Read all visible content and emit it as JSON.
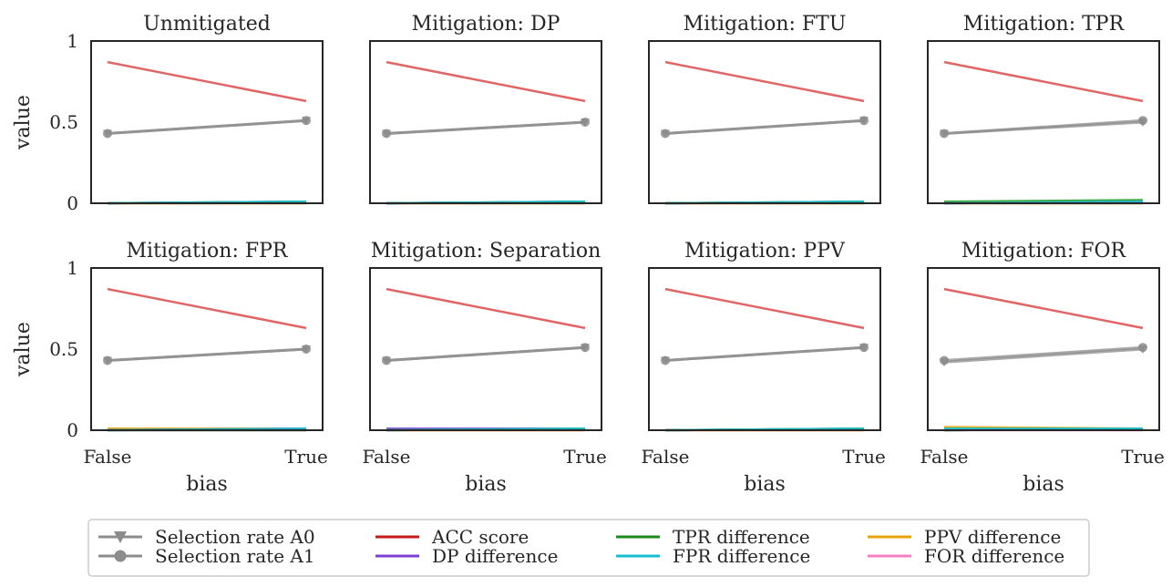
{
  "chart_data": {
    "type": "line",
    "ylabel": "value",
    "xlabel": "bias",
    "categories": [
      "False",
      "True"
    ],
    "y_ticks": [
      {
        "value": 0,
        "label": "0"
      },
      {
        "value": 0.5,
        "label": "0.5"
      },
      {
        "value": 1,
        "label": "1"
      }
    ],
    "ylim": [
      0,
      1
    ],
    "grid": false,
    "legend_position": "bottom",
    "colors": {
      "selection_rate": "#8c8c8c",
      "acc": "#e06666",
      "dp": "#7f3fd1",
      "tpr": "#2ca02c",
      "fpr": "#17becf",
      "ppv": "#e5a50a",
      "for": "#f67ec6"
    },
    "panels": [
      {
        "title": "Unmitigated",
        "series": {
          "acc": [
            0.87,
            0.63
          ],
          "sel_a0": [
            0.43,
            0.51
          ],
          "sel_a1": [
            0.43,
            0.51
          ],
          "dp": [
            0.0,
            0.01
          ],
          "tpr": [
            0.0,
            0.01
          ],
          "fpr": [
            0.0,
            0.01
          ],
          "ppv": [
            0.0,
            0.0
          ],
          "for": [
            0.0,
            0.0
          ]
        }
      },
      {
        "title": "Mitigation: DP",
        "series": {
          "acc": [
            0.87,
            0.63
          ],
          "sel_a0": [
            0.43,
            0.5
          ],
          "sel_a1": [
            0.43,
            0.5
          ],
          "dp": [
            0.0,
            0.01
          ],
          "tpr": [
            0.0,
            0.01
          ],
          "fpr": [
            0.0,
            0.01
          ],
          "ppv": [
            0.0,
            0.0
          ],
          "for": [
            0.0,
            0.0
          ]
        }
      },
      {
        "title": "Mitigation: FTU",
        "series": {
          "acc": [
            0.87,
            0.63
          ],
          "sel_a0": [
            0.43,
            0.51
          ],
          "sel_a1": [
            0.43,
            0.51
          ],
          "dp": [
            0.0,
            0.01
          ],
          "tpr": [
            0.0,
            0.01
          ],
          "fpr": [
            0.0,
            0.01
          ],
          "ppv": [
            0.0,
            0.0
          ],
          "for": [
            0.0,
            0.0
          ]
        }
      },
      {
        "title": "Mitigation: TPR",
        "series": {
          "acc": [
            0.87,
            0.63
          ],
          "sel_a0": [
            0.43,
            0.5
          ],
          "sel_a1": [
            0.43,
            0.51
          ],
          "dp": [
            0.0,
            0.01
          ],
          "tpr": [
            0.01,
            0.02
          ],
          "fpr": [
            0.0,
            0.01
          ],
          "ppv": [
            0.0,
            0.0
          ],
          "for": [
            0.0,
            0.0
          ]
        }
      },
      {
        "title": "Mitigation: FPR",
        "series": {
          "acc": [
            0.87,
            0.63
          ],
          "sel_a0": [
            0.43,
            0.5
          ],
          "sel_a1": [
            0.43,
            0.5
          ],
          "dp": [
            0.0,
            0.01
          ],
          "tpr": [
            0.0,
            0.0
          ],
          "fpr": [
            0.0,
            0.01
          ],
          "ppv": [
            0.01,
            0.01
          ],
          "for": [
            0.0,
            0.0
          ]
        }
      },
      {
        "title": "Mitigation: Separation",
        "series": {
          "acc": [
            0.87,
            0.63
          ],
          "sel_a0": [
            0.43,
            0.51
          ],
          "sel_a1": [
            0.43,
            0.51
          ],
          "dp": [
            0.01,
            0.01
          ],
          "tpr": [
            0.0,
            0.01
          ],
          "fpr": [
            0.0,
            0.01
          ],
          "ppv": [
            0.0,
            0.0
          ],
          "for": [
            0.0,
            0.0
          ]
        }
      },
      {
        "title": "Mitigation: PPV",
        "series": {
          "acc": [
            0.87,
            0.63
          ],
          "sel_a0": [
            0.43,
            0.51
          ],
          "sel_a1": [
            0.43,
            0.51
          ],
          "dp": [
            0.0,
            0.01
          ],
          "tpr": [
            0.0,
            0.01
          ],
          "fpr": [
            0.0,
            0.01
          ],
          "ppv": [
            0.0,
            0.0
          ],
          "for": [
            0.0,
            0.0
          ]
        }
      },
      {
        "title": "Mitigation: FOR",
        "series": {
          "acc": [
            0.87,
            0.63
          ],
          "sel_a0": [
            0.42,
            0.5
          ],
          "sel_a1": [
            0.43,
            0.51
          ],
          "dp": [
            0.0,
            0.01
          ],
          "tpr": [
            0.0,
            0.01
          ],
          "fpr": [
            0.01,
            0.01
          ],
          "ppv": [
            0.02,
            0.01
          ],
          "for": [
            0.0,
            0.0
          ]
        }
      }
    ],
    "legend": [
      {
        "key": "sel_a0",
        "label": "Selection rate A0",
        "marker": "triangle-down",
        "color_key": "selection_rate"
      },
      {
        "key": "sel_a1",
        "label": "Selection rate A1",
        "marker": "circle",
        "color_key": "selection_rate"
      },
      {
        "key": "acc",
        "label": "ACC score",
        "color": "#c41a1a"
      },
      {
        "key": "dp",
        "label": "DP difference",
        "color_key": "dp"
      },
      {
        "key": "tpr",
        "label": "TPR difference",
        "color": "#1a8a1a"
      },
      {
        "key": "fpr",
        "label": "FPR difference",
        "color_key": "fpr"
      },
      {
        "key": "ppv",
        "label": "PPV difference",
        "color_key": "ppv"
      },
      {
        "key": "for",
        "label": "FOR difference",
        "color_key": "for"
      }
    ]
  }
}
